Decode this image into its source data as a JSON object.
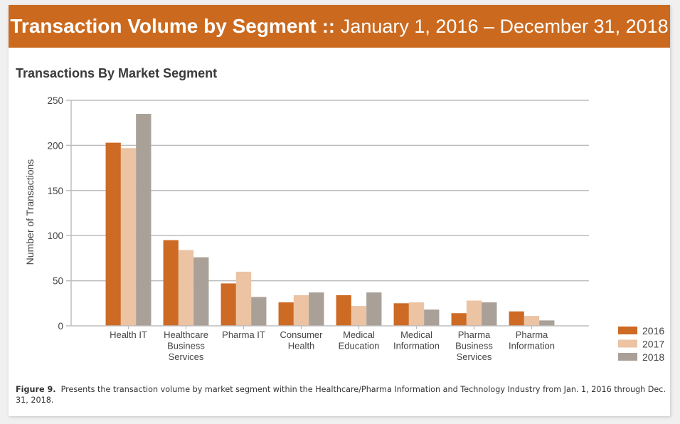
{
  "header": {
    "title_bold": "Transaction Volume by Segment",
    "separator": "::",
    "date_range": "January 1, 2016 – December 31, 2018"
  },
  "caption": {
    "label": "Figure 9.",
    "text": "Presents the transaction volume by market segment within the Healthcare/Pharma Information and Technology Industry from Jan. 1, 2016 through Dec. 31, 2018."
  },
  "colors": {
    "header_bg": "#cb6a1f",
    "series_2016": "#cd6a24",
    "series_2017": "#ecc3a3",
    "series_2018": "#a9a097"
  },
  "chart_data": {
    "type": "bar",
    "title": "Transactions By Market Segment",
    "xlabel": "",
    "ylabel": "Number of Transactions",
    "ylim": [
      0,
      250
    ],
    "yticks": [
      0,
      50,
      100,
      150,
      200,
      250
    ],
    "grid": true,
    "legend_position": "bottom-right",
    "categories": [
      [
        "Health IT"
      ],
      [
        "Healthcare",
        "Business",
        "Services"
      ],
      [
        "Pharma IT"
      ],
      [
        "Consumer",
        "Health"
      ],
      [
        "Medical",
        "Education"
      ],
      [
        "Medical",
        "Information"
      ],
      [
        "Pharma",
        "Business",
        "Services"
      ],
      [
        "Pharma",
        "Information"
      ]
    ],
    "series": [
      {
        "name": "2016",
        "color": "#cd6a24",
        "values": [
          203,
          95,
          47,
          26,
          34,
          25,
          14,
          16
        ]
      },
      {
        "name": "2017",
        "color": "#ecc3a3",
        "values": [
          197,
          84,
          60,
          34,
          22,
          26,
          28,
          11
        ]
      },
      {
        "name": "2018",
        "color": "#a9a097",
        "values": [
          235,
          76,
          32,
          37,
          37,
          18,
          26,
          6
        ]
      }
    ]
  }
}
